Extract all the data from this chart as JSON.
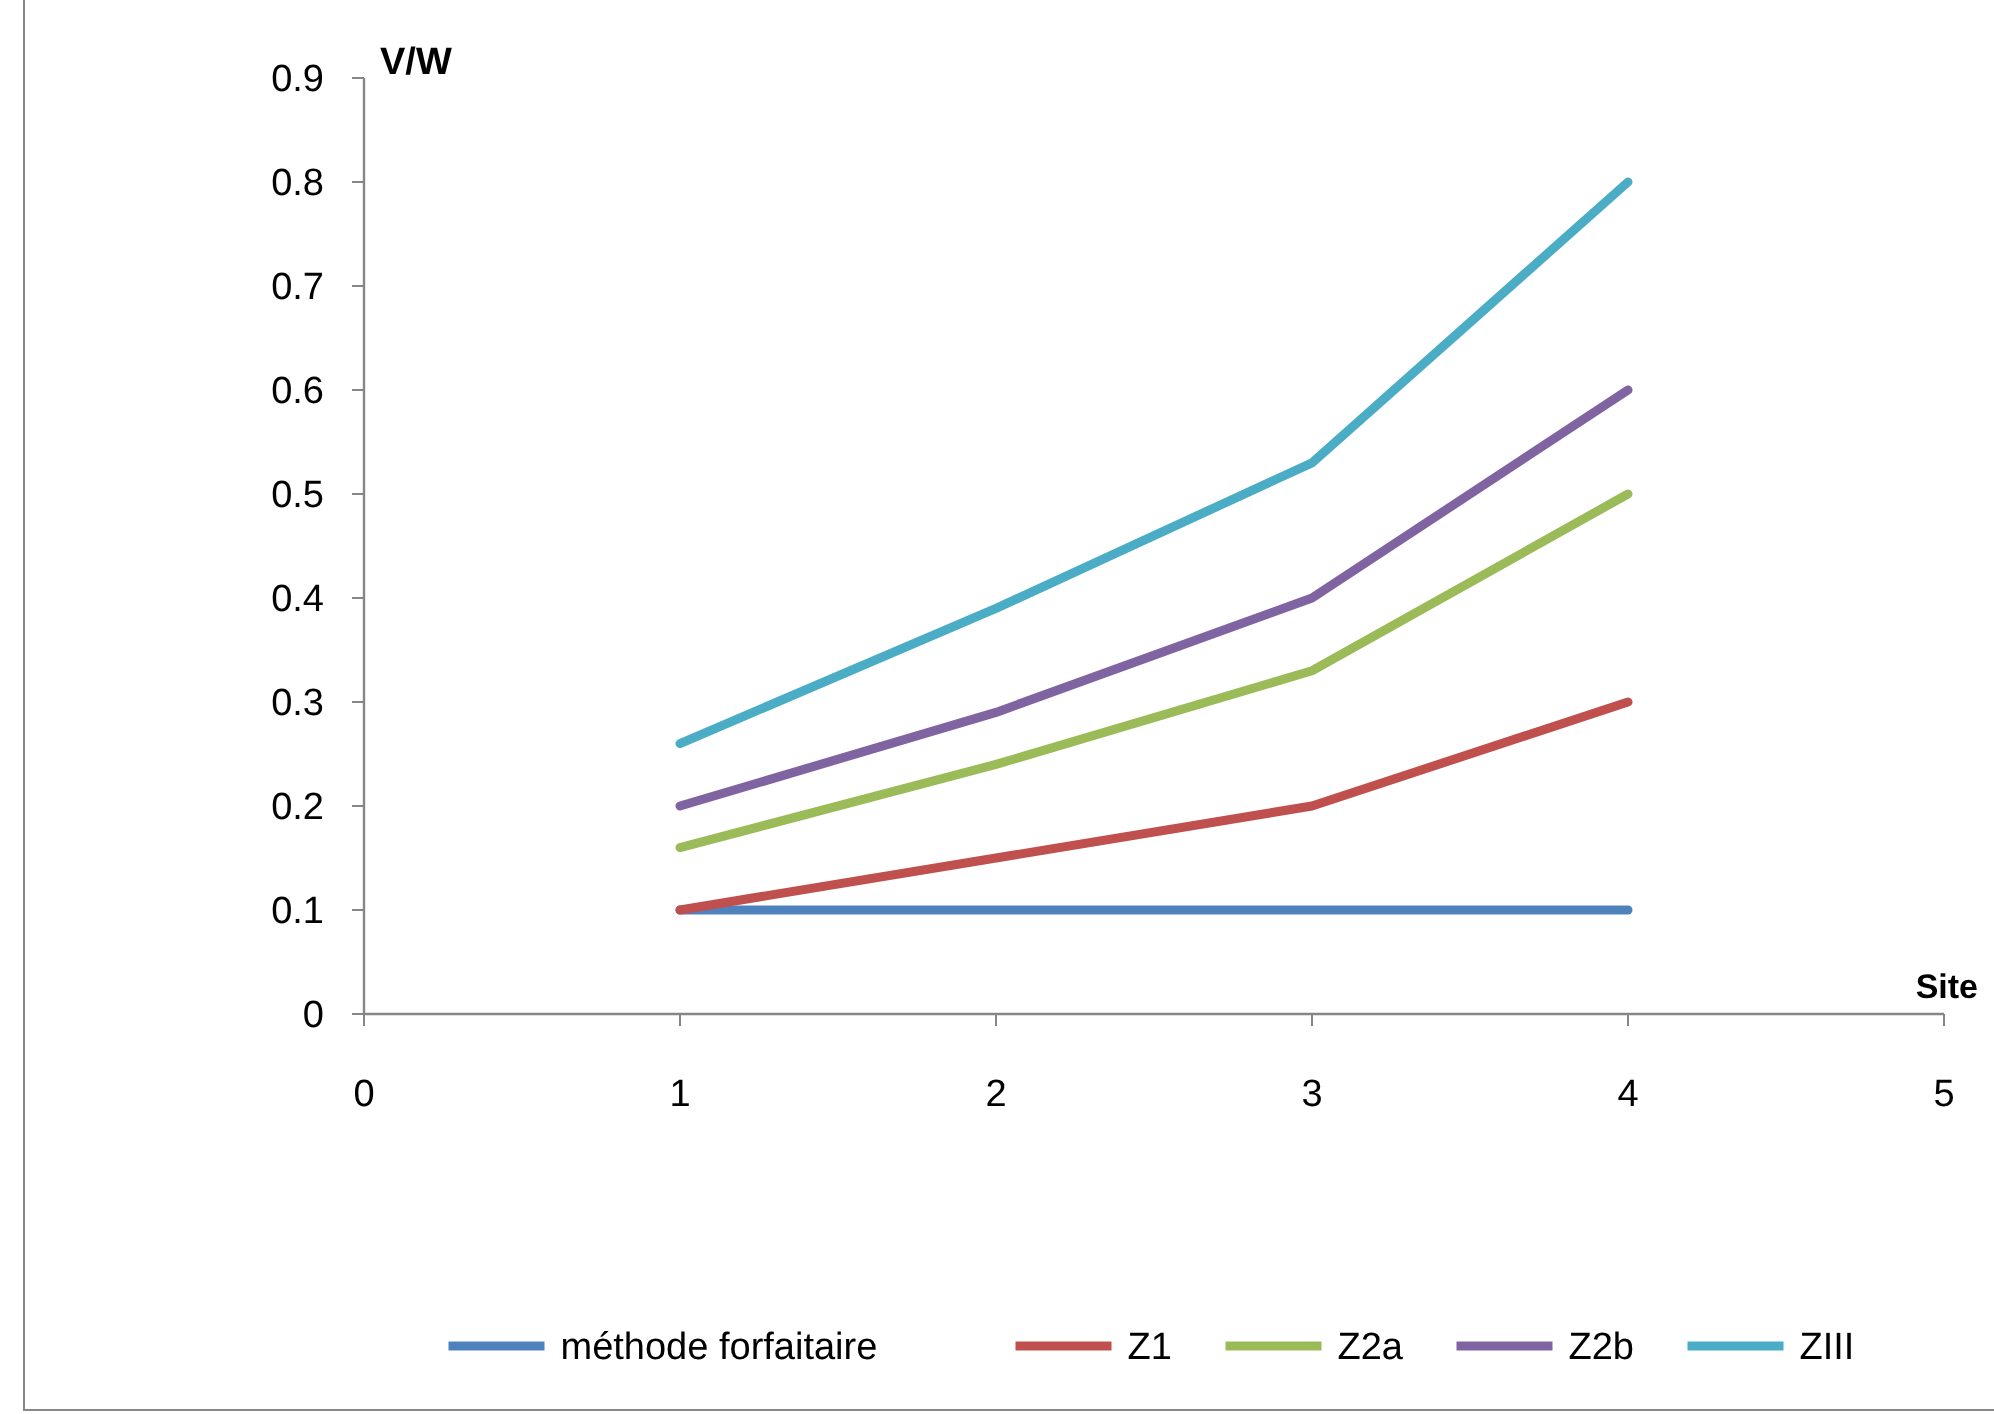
{
  "chart_data": {
    "type": "line",
    "xlabel": "Site",
    "ylabel": "V/W",
    "x": [
      1,
      2,
      3,
      4
    ],
    "xlim": [
      0,
      5
    ],
    "xticks": [
      0,
      1,
      2,
      3,
      4,
      5
    ],
    "ylim": [
      0,
      0.9
    ],
    "yticks": [
      0,
      0.1,
      0.2,
      0.3,
      0.4,
      0.5,
      0.6,
      0.7,
      0.8,
      0.9
    ],
    "grid": false,
    "legend": "bottom",
    "marker": "none",
    "line_style": "solid",
    "series": [
      {
        "name": "méthode forfaitaire",
        "color": "#4f81bd",
        "values": [
          0.1,
          0.1,
          0.1,
          0.1
        ]
      },
      {
        "name": "Z1",
        "color": "#c0504d",
        "values": [
          0.1,
          0.15,
          0.2,
          0.3
        ]
      },
      {
        "name": "Z2a",
        "color": "#9bbb59",
        "values": [
          0.16,
          0.24,
          0.33,
          0.5
        ]
      },
      {
        "name": "Z2b",
        "color": "#8064a2",
        "values": [
          0.2,
          0.29,
          0.4,
          0.6
        ]
      },
      {
        "name": "ZIII",
        "color": "#4bacc6",
        "values": [
          0.26,
          0.39,
          0.53,
          0.8
        ]
      }
    ]
  }
}
